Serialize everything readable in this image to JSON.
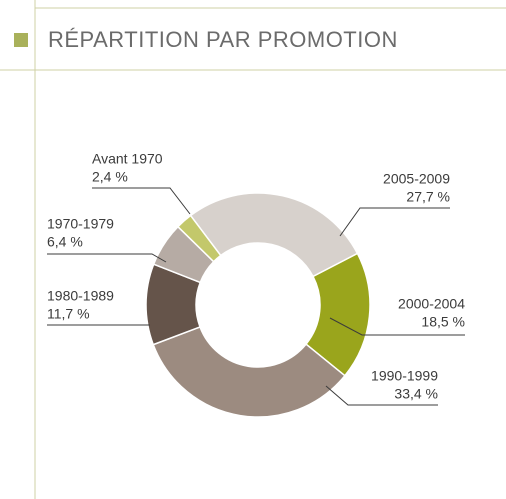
{
  "chart_data": {
    "type": "pie",
    "title": "RÉPARTITION PAR PROMOTION",
    "categories": [
      "2005-2009",
      "2000-2004",
      "1990-1999",
      "1980-1989",
      "1970-1979",
      "Avant 1970"
    ],
    "values": [
      27.7,
      18.5,
      33.4,
      11.7,
      6.4,
      2.4
    ],
    "value_labels": [
      "27,7 %",
      "18,5 %",
      "33,4 %",
      "11,7 %",
      "6,4 %",
      "2,4 %"
    ],
    "colors": [
      "#d7d1cc",
      "#9aa51c",
      "#9c8b80",
      "#65544a",
      "#b6aba4",
      "#c3c86b"
    ]
  }
}
